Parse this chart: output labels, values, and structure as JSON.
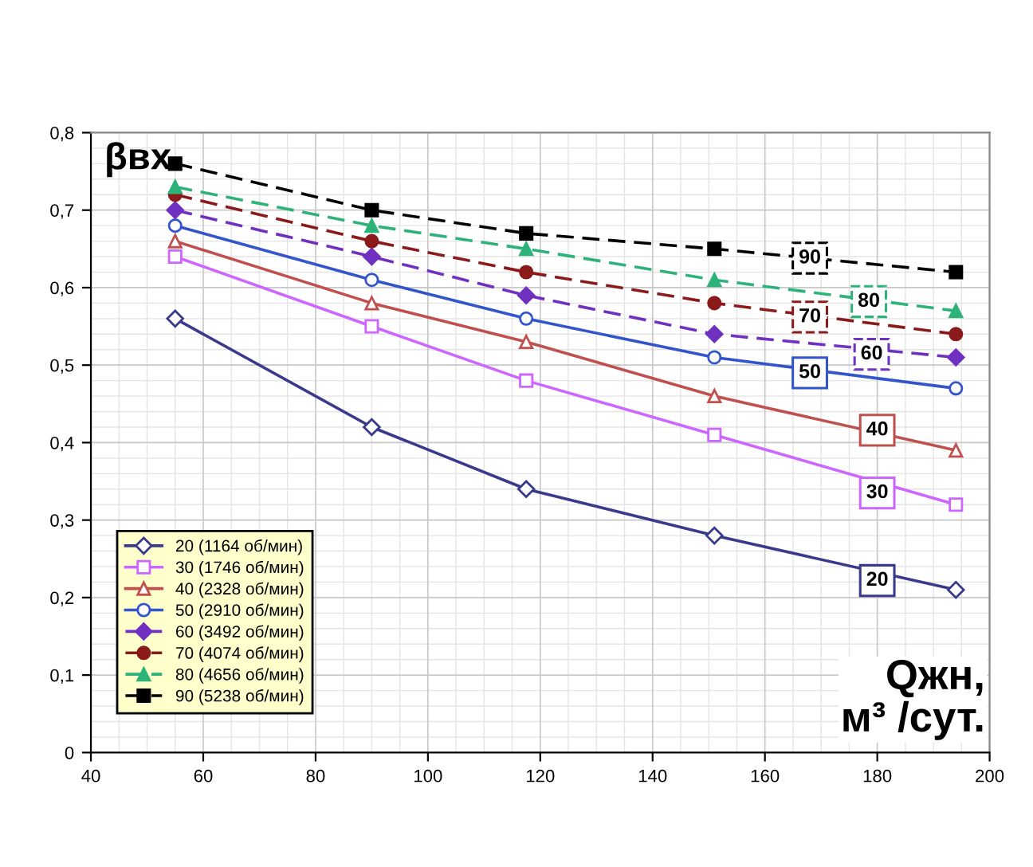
{
  "chart_data": {
    "type": "line",
    "xlabel": "Qжн,\nм³ /сут.",
    "ylabel": "βвх",
    "xlim": [
      40,
      200
    ],
    "xticks": [
      40,
      60,
      80,
      100,
      120,
      140,
      160,
      180,
      200
    ],
    "ylim": [
      0,
      0.8
    ],
    "yticks": [
      0,
      {
        "value": 0.1,
        "label": "0,1"
      },
      {
        "value": 0.2,
        "label": "0,2"
      },
      {
        "value": 0.3,
        "label": "0,3"
      },
      {
        "value": 0.4,
        "label": "0,4"
      },
      {
        "value": 0.5,
        "label": "0,5"
      },
      {
        "value": 0.6,
        "label": "0,6"
      },
      {
        "value": 0.7,
        "label": "0,7"
      },
      {
        "value": 0.8,
        "label": "0,8"
      }
    ],
    "grid": true,
    "legend": "bottom left",
    "x": [
      55,
      90,
      117.5,
      151,
      194
    ],
    "series": [
      {
        "name": "20 (1164 об/мин)",
        "color": "#3a3a8c",
        "marker": "diamond",
        "line_style": "solid",
        "values": [
          0.56,
          0.42,
          0.34,
          0.28,
          0.21
        ]
      },
      {
        "name": "30 (1746 об/мин)",
        "color": "#cc66ff",
        "marker": "square",
        "line_style": "solid",
        "values": [
          0.64,
          0.55,
          0.48,
          0.41,
          0.32
        ]
      },
      {
        "name": "40 (2328 об/мин)",
        "color": "#c0504d",
        "marker": "triangle",
        "line_style": "solid",
        "values": [
          0.66,
          0.58,
          0.53,
          0.46,
          0.39
        ]
      },
      {
        "name": "50 (2910 об/мин)",
        "color": "#3355cc",
        "marker": "circle",
        "line_style": "solid",
        "values": [
          0.68,
          0.61,
          0.56,
          0.51,
          0.47
        ]
      },
      {
        "name": "60 (3492 об/мин)",
        "color": "#7030c0",
        "marker": "diamond",
        "line_style": "dashed",
        "values": [
          0.7,
          0.64,
          0.59,
          0.54,
          0.51
        ]
      },
      {
        "name": "70 (4074 об/мин)",
        "color": "#8b1a1a",
        "marker": "circle",
        "line_style": "dashed",
        "values": [
          0.72,
          0.66,
          0.62,
          0.58,
          0.54
        ]
      },
      {
        "name": "80 (4656 об/мин)",
        "color": "#2db37a",
        "marker": "triangle",
        "line_style": "dashed",
        "values": [
          0.73,
          0.68,
          0.65,
          0.61,
          0.57
        ]
      },
      {
        "name": "90 (5238 об/мин)",
        "color": "#000000",
        "marker": "square",
        "line_style": "dashed",
        "values": [
          0.76,
          0.7,
          0.67,
          0.65,
          0.62
        ]
      }
    ],
    "annotations": [
      {
        "text": "20",
        "x": 180,
        "y": 0.222
      },
      {
        "text": "30",
        "x": 180,
        "y": 0.335
      },
      {
        "text": "40",
        "x": 180,
        "y": 0.416
      },
      {
        "text": "50",
        "x": 168,
        "y": 0.49
      },
      {
        "text": "60",
        "x": 179,
        "y": 0.514
      },
      {
        "text": "70",
        "x": 168,
        "y": 0.562
      },
      {
        "text": "80",
        "x": 178.5,
        "y": 0.582
      },
      {
        "text": "90",
        "x": 168,
        "y": 0.638
      }
    ]
  }
}
